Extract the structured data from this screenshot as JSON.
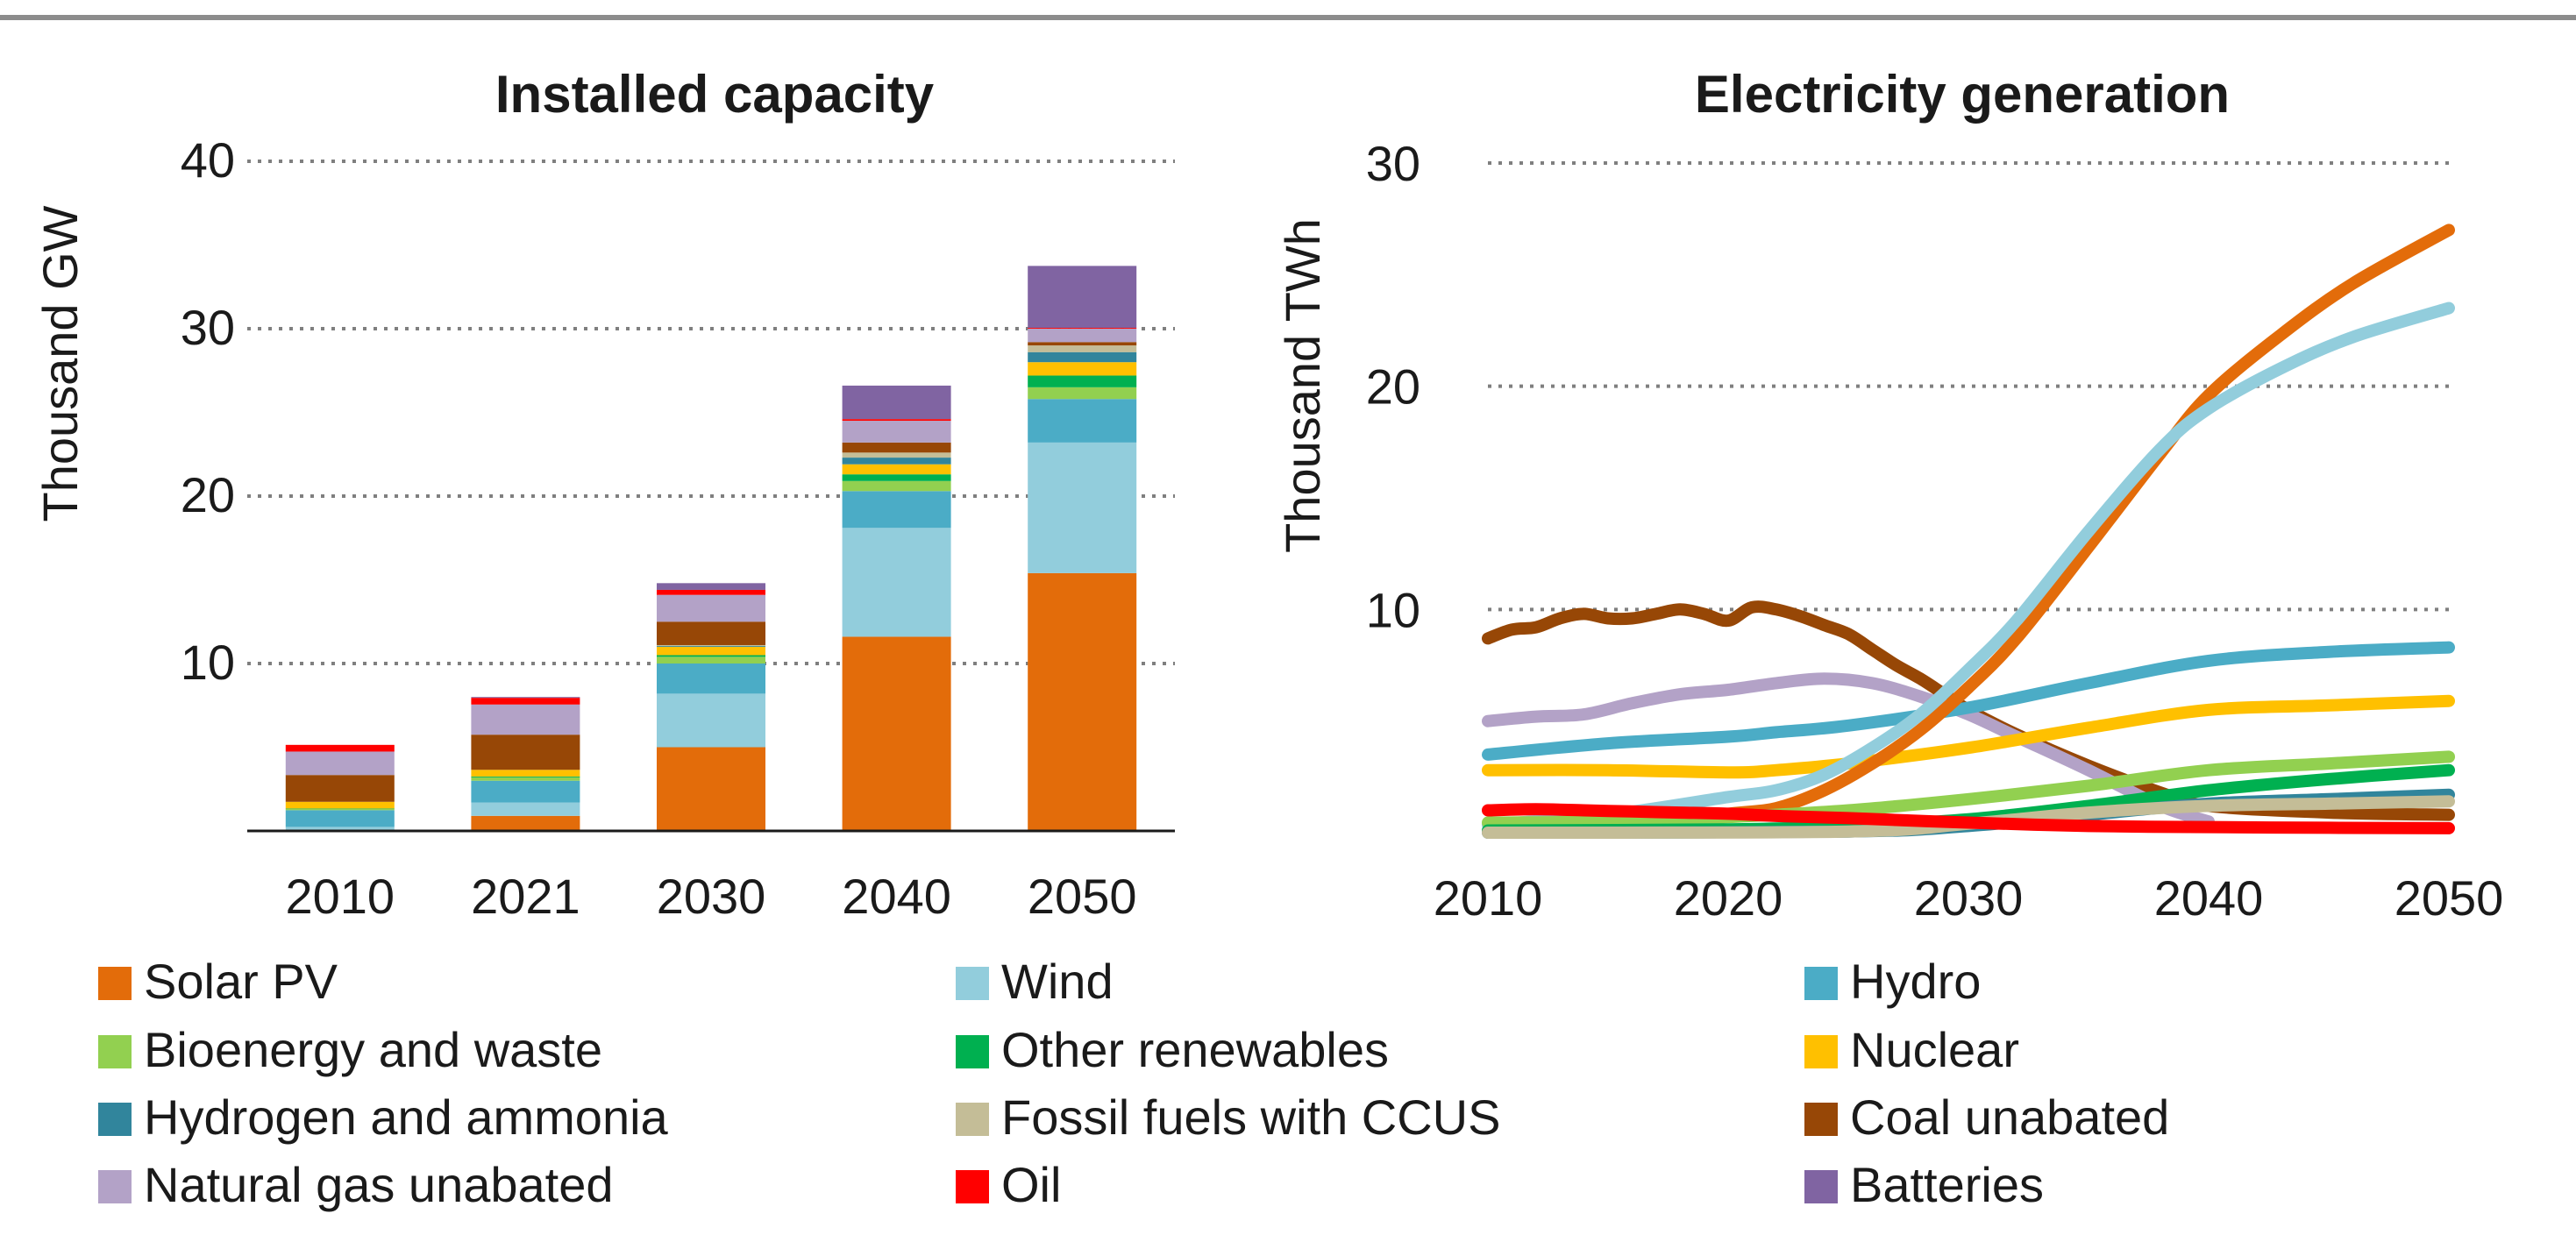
{
  "chart_data": [
    {
      "type": "bar",
      "stacked": true,
      "title": "Installed capacity",
      "xlabel": "",
      "ylabel": "Thousand GW",
      "ylim": [
        0,
        40
      ],
      "yticks": [
        10,
        20,
        30,
        40
      ],
      "categories": [
        "2010",
        "2021",
        "2030",
        "2040",
        "2050"
      ],
      "series": [
        {
          "name": "Solar PV",
          "values": [
            0.04,
            0.9,
            5.0,
            11.6,
            15.4
          ]
        },
        {
          "name": "Wind",
          "values": [
            0.2,
            0.8,
            3.2,
            6.5,
            7.8
          ]
        },
        {
          "name": "Hydro",
          "values": [
            1.0,
            1.3,
            1.8,
            2.2,
            2.6
          ]
        },
        {
          "name": "Bioenergy and waste",
          "values": [
            0.08,
            0.2,
            0.4,
            0.6,
            0.7
          ]
        },
        {
          "name": "Other renewables",
          "values": [
            0.02,
            0.05,
            0.1,
            0.4,
            0.7
          ]
        },
        {
          "name": "Nuclear",
          "values": [
            0.4,
            0.4,
            0.5,
            0.6,
            0.8
          ]
        },
        {
          "name": "Hydrogen and ammonia",
          "values": [
            0,
            0,
            0.05,
            0.4,
            0.6
          ]
        },
        {
          "name": "Fossil fuels with CCUS",
          "values": [
            0,
            0,
            0.05,
            0.3,
            0.4
          ]
        },
        {
          "name": "Coal unabated",
          "values": [
            1.6,
            2.1,
            1.4,
            0.6,
            0.2
          ]
        },
        {
          "name": "Natural gas unabated",
          "values": [
            1.4,
            1.8,
            1.6,
            1.3,
            0.8
          ]
        },
        {
          "name": "Oil",
          "values": [
            0.4,
            0.4,
            0.3,
            0.1,
            0.05
          ]
        },
        {
          "name": "Batteries",
          "values": [
            0,
            0.05,
            0.4,
            2.0,
            3.7
          ]
        }
      ]
    },
    {
      "type": "line",
      "title": "Electricity generation",
      "xlabel": "",
      "ylabel": "Thousand TWh",
      "xlim": [
        2010,
        2050
      ],
      "ylim": [
        0,
        30
      ],
      "xticks": [
        2010,
        2020,
        2030,
        2040,
        2050
      ],
      "yticks": [
        10,
        20,
        30
      ],
      "series": [
        {
          "name": "Coal unabated",
          "x": [
            2010,
            2011,
            2012,
            2013,
            2014,
            2015,
            2016,
            2017,
            2018,
            2019,
            2020,
            2021,
            2022,
            2023,
            2024,
            2025,
            2026,
            2027,
            2028,
            2029,
            2030,
            2032,
            2035,
            2038,
            2040,
            2045,
            2050
          ],
          "values": [
            8.7,
            9.1,
            9.2,
            9.6,
            9.8,
            9.6,
            9.6,
            9.8,
            10.0,
            9.8,
            9.5,
            10.1,
            10.0,
            9.7,
            9.3,
            8.9,
            8.2,
            7.5,
            6.9,
            6.2,
            5.5,
            4.4,
            3.0,
            1.8,
            1.2,
            0.9,
            0.8
          ]
        },
        {
          "name": "Natural gas unabated",
          "x": [
            2010,
            2012,
            2014,
            2016,
            2018,
            2020,
            2022,
            2024,
            2026,
            2028,
            2030,
            2032,
            2035,
            2038,
            2040
          ],
          "values": [
            5.0,
            5.2,
            5.3,
            5.8,
            6.2,
            6.4,
            6.7,
            6.9,
            6.7,
            6.1,
            5.3,
            4.3,
            2.8,
            1.2,
            0.5
          ]
        },
        {
          "name": "Hydro",
          "x": [
            2010,
            2015,
            2020,
            2022,
            2025,
            2030,
            2035,
            2040,
            2045,
            2050
          ],
          "values": [
            3.5,
            4.0,
            4.3,
            4.5,
            4.8,
            5.6,
            6.7,
            7.7,
            8.1,
            8.3
          ]
        },
        {
          "name": "Nuclear",
          "x": [
            2010,
            2015,
            2020,
            2022,
            2025,
            2030,
            2035,
            2040,
            2045,
            2050
          ],
          "values": [
            2.8,
            2.8,
            2.7,
            2.8,
            3.1,
            3.8,
            4.7,
            5.5,
            5.7,
            5.9
          ]
        },
        {
          "name": "Solar PV",
          "x": [
            2010,
            2015,
            2020,
            2022,
            2024,
            2026,
            2028,
            2030,
            2032,
            2035,
            2038,
            2040,
            2043,
            2046,
            2050
          ],
          "values": [
            0.05,
            0.25,
            0.85,
            1.1,
            1.9,
            3.1,
            4.6,
            6.5,
            8.7,
            12.8,
            17.0,
            19.6,
            22.3,
            24.6,
            27.0
          ]
        },
        {
          "name": "Wind",
          "x": [
            2010,
            2015,
            2020,
            2022,
            2024,
            2026,
            2028,
            2030,
            2032,
            2035,
            2038,
            2040,
            2043,
            2046,
            2050
          ],
          "values": [
            0.35,
            0.8,
            1.6,
            1.9,
            2.6,
            3.8,
            5.3,
            7.3,
            9.5,
            13.5,
            17.2,
            19.0,
            20.8,
            22.2,
            23.5
          ]
        },
        {
          "name": "Bioenergy and waste",
          "x": [
            2010,
            2015,
            2020,
            2025,
            2030,
            2035,
            2040,
            2045,
            2050
          ],
          "values": [
            0.45,
            0.5,
            0.7,
            1.0,
            1.5,
            2.1,
            2.8,
            3.1,
            3.4
          ]
        },
        {
          "name": "Other renewables",
          "x": [
            2010,
            2020,
            2025,
            2030,
            2035,
            2040,
            2045,
            2050
          ],
          "values": [
            0.1,
            0.15,
            0.3,
            0.6,
            1.2,
            1.9,
            2.4,
            2.8
          ]
        },
        {
          "name": "Hydrogen and ammonia",
          "x": [
            2010,
            2025,
            2030,
            2035,
            2040,
            2045,
            2050
          ],
          "values": [
            0.0,
            0.05,
            0.3,
            0.8,
            1.3,
            1.5,
            1.7
          ]
        },
        {
          "name": "Fossil fuels with CCUS",
          "x": [
            2010,
            2025,
            2030,
            2035,
            2040,
            2045,
            2050
          ],
          "values": [
            0.0,
            0.05,
            0.4,
            0.9,
            1.2,
            1.3,
            1.4
          ]
        },
        {
          "name": "Oil",
          "x": [
            2010,
            2012,
            2014,
            2016,
            2018,
            2020,
            2022,
            2025,
            2030,
            2035,
            2040,
            2045,
            2050
          ],
          "values": [
            1.0,
            1.05,
            1.0,
            0.95,
            0.9,
            0.85,
            0.75,
            0.65,
            0.45,
            0.3,
            0.25,
            0.22,
            0.2
          ]
        }
      ]
    }
  ],
  "legend": [
    {
      "name": "Solar PV",
      "color": "#E36C0A"
    },
    {
      "name": "Wind",
      "color": "#92CDDC"
    },
    {
      "name": "Hydro",
      "color": "#4BACC6"
    },
    {
      "name": "Bioenergy and waste",
      "color": "#92D050"
    },
    {
      "name": "Other renewables",
      "color": "#00B050"
    },
    {
      "name": "Nuclear",
      "color": "#FFC000"
    },
    {
      "name": "Hydrogen and ammonia",
      "color": "#31859C"
    },
    {
      "name": "Fossil fuels with CCUS",
      "color": "#C4BD97"
    },
    {
      "name": "Coal unabated",
      "color": "#974706"
    },
    {
      "name": "Natural gas unabated",
      "color": "#B3A2C7"
    },
    {
      "name": "Oil",
      "color": "#FF0000"
    },
    {
      "name": "Batteries",
      "color": "#8064A2"
    }
  ]
}
